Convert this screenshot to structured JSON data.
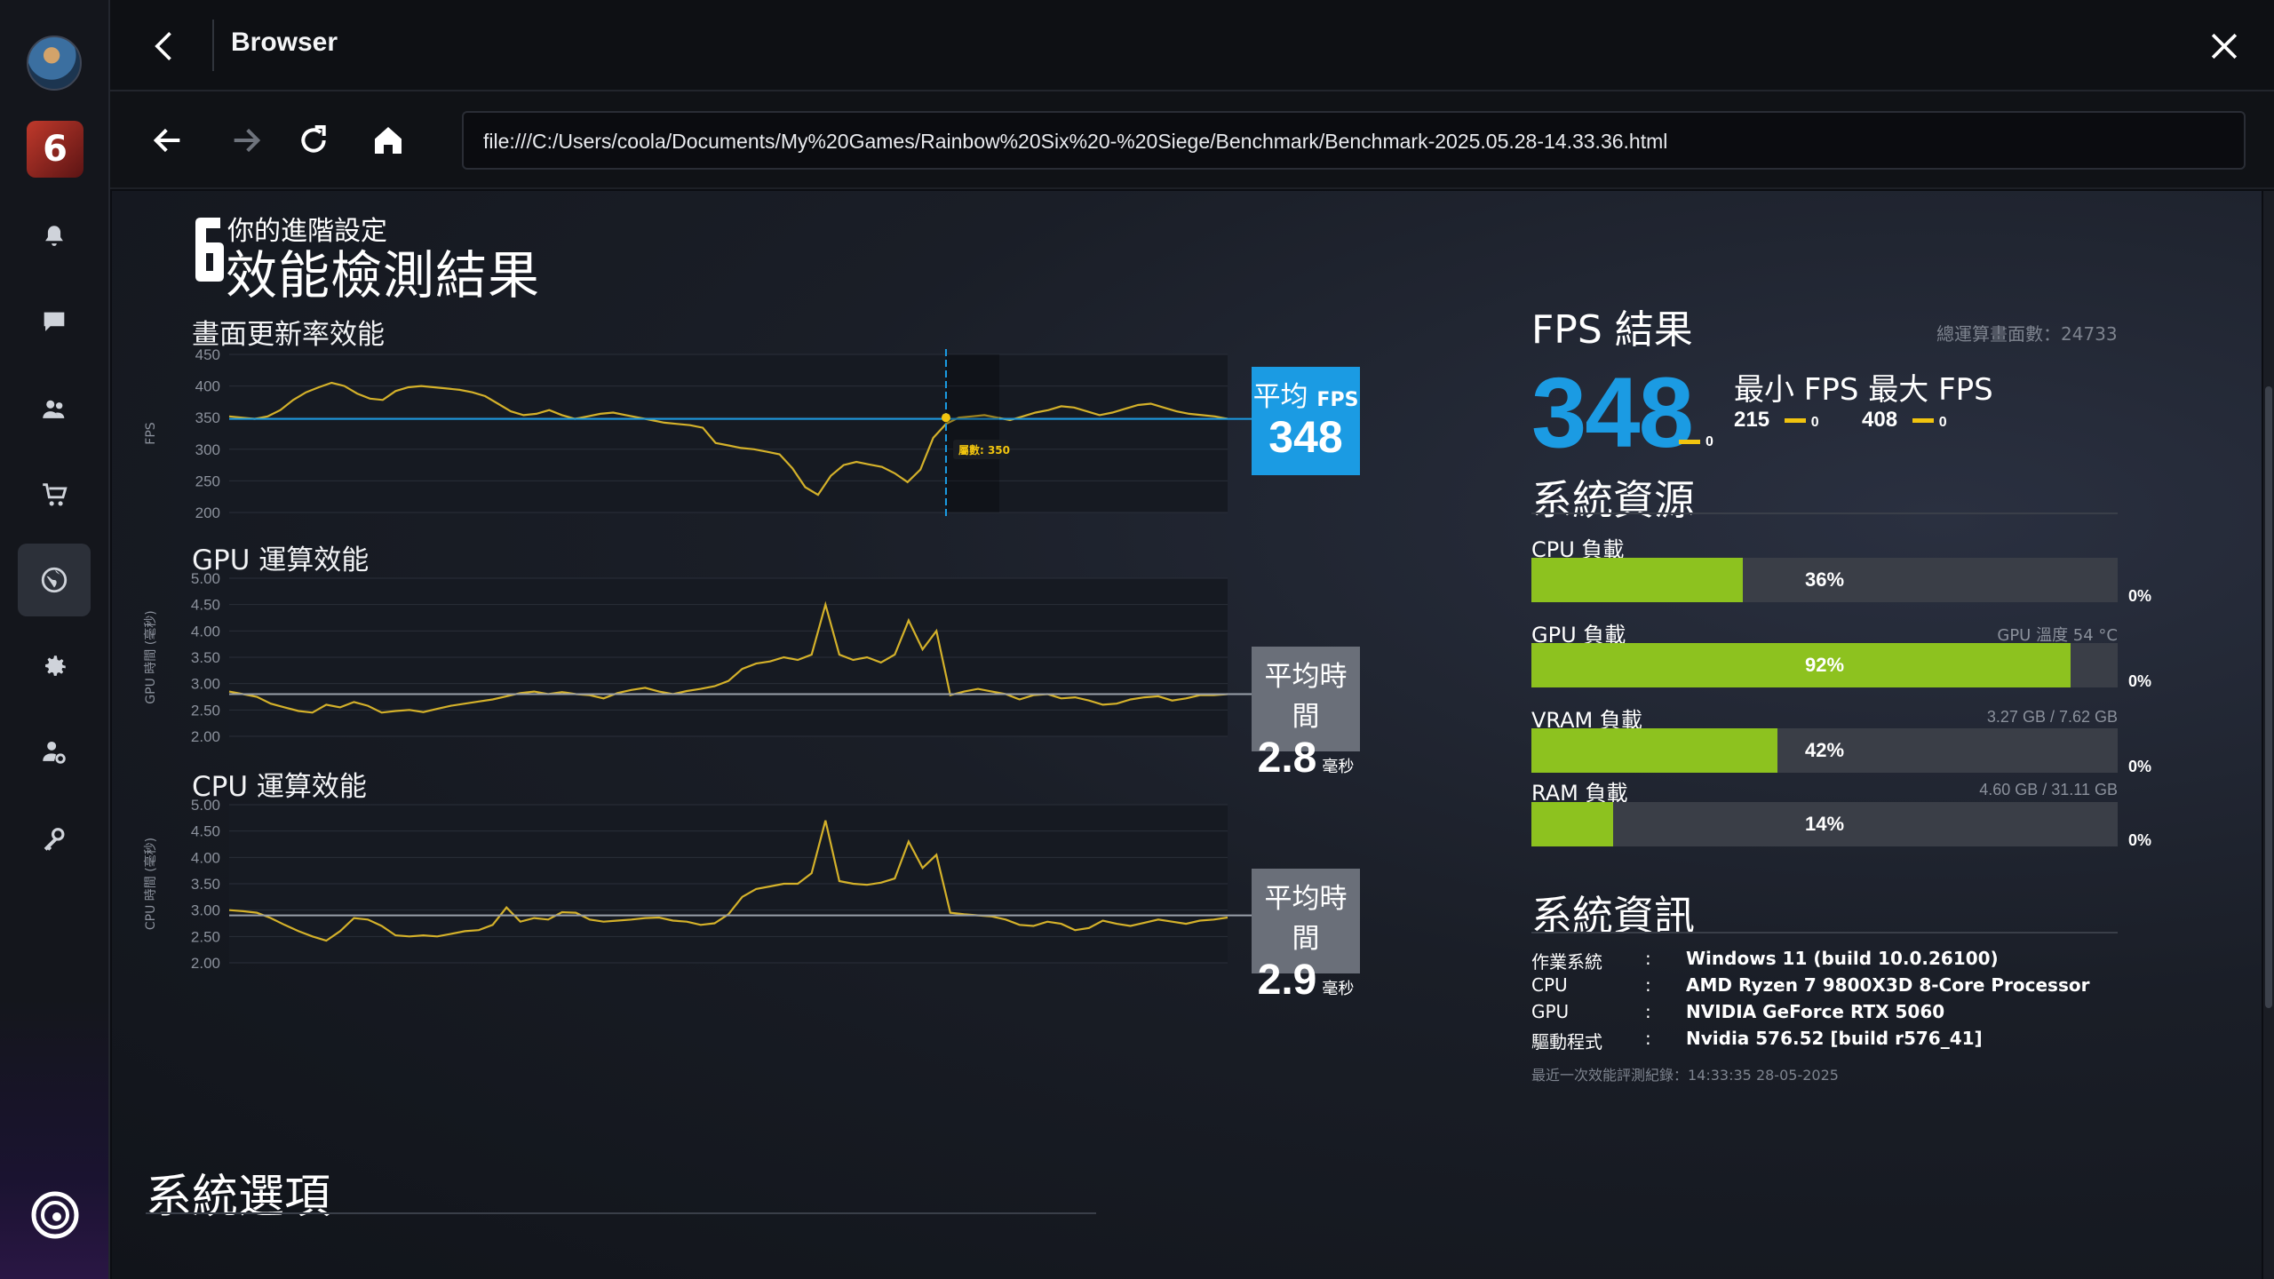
{
  "window": {
    "title": "Browser"
  },
  "nav": {
    "url": "file:///C:/Users/coola/Documents/My%20Games/Rainbow%20Six%20-%20Siege/Benchmark/Benchmark-2025.05.28-14.33.36.html"
  },
  "rail": {
    "items": [
      "notifications",
      "chat",
      "friends",
      "store",
      "browser",
      "settings",
      "account",
      "keys"
    ],
    "active": "browser"
  },
  "page": {
    "subtitle": "你的進階設定",
    "title": "效能檢測結果",
    "logo_text": "6"
  },
  "fps_chart": {
    "heading": "畫面更新率效能",
    "ylabel": "FPS",
    "ticks": [
      "450",
      "400",
      "350",
      "300",
      "250",
      "200"
    ],
    "tooltip": "屬數: 350",
    "avg_label_1": "平均",
    "avg_label_2": "FPS",
    "avg_value": "348"
  },
  "gpu_chart": {
    "heading": "GPU 運算效能",
    "ylabel": "GPU 時間 (毫秒)",
    "ticks": [
      "5.00",
      "4.50",
      "4.00",
      "3.50",
      "3.00",
      "2.50",
      "2.00"
    ],
    "avg_label": "平均時間",
    "avg_value": "2.8",
    "avg_unit": "毫秒"
  },
  "cpu_chart": {
    "heading": "CPU 運算效能",
    "ylabel": "CPU 時間 (毫秒)",
    "ticks": [
      "5.00",
      "4.50",
      "4.00",
      "3.50",
      "3.00",
      "2.50",
      "2.00"
    ],
    "avg_label": "平均時間",
    "avg_value": "2.9",
    "avg_unit": "毫秒"
  },
  "chart_data": [
    {
      "type": "line",
      "title": "畫面更新率效能",
      "ylabel": "FPS",
      "ylim": [
        200,
        450
      ],
      "reference_line": 348,
      "y": [
        352,
        350,
        348,
        352,
        362,
        378,
        390,
        398,
        405,
        400,
        388,
        380,
        378,
        392,
        398,
        400,
        398,
        396,
        394,
        390,
        384,
        372,
        360,
        354,
        356,
        362,
        354,
        348,
        352,
        356,
        358,
        354,
        350,
        346,
        342,
        340,
        338,
        334,
        310,
        306,
        302,
        300,
        296,
        292,
        270,
        240,
        228,
        258,
        275,
        280,
        276,
        272,
        262,
        248,
        268,
        318,
        340,
        350,
        352,
        354,
        350,
        346,
        352,
        358,
        362,
        368,
        366,
        360,
        354,
        358,
        364,
        370,
        372,
        366,
        360,
        356,
        354,
        352,
        348
      ],
      "highlight": {
        "value": 350,
        "label": "屬數: 350"
      },
      "grid": true
    },
    {
      "type": "line",
      "title": "GPU 運算效能",
      "ylabel": "GPU 時間 (毫秒)",
      "ylim": [
        2.0,
        5.0
      ],
      "reference_line": 2.8,
      "y": [
        2.85,
        2.8,
        2.75,
        2.62,
        2.55,
        2.48,
        2.45,
        2.6,
        2.55,
        2.65,
        2.58,
        2.45,
        2.48,
        2.5,
        2.46,
        2.52,
        2.58,
        2.62,
        2.66,
        2.7,
        2.76,
        2.82,
        2.85,
        2.8,
        2.84,
        2.8,
        2.78,
        2.72,
        2.82,
        2.88,
        2.92,
        2.85,
        2.8,
        2.86,
        2.9,
        2.95,
        3.05,
        3.28,
        3.38,
        3.42,
        3.5,
        3.45,
        3.55,
        4.5,
        3.55,
        3.45,
        3.5,
        3.4,
        3.55,
        4.2,
        3.65,
        4.0,
        2.78,
        2.85,
        2.9,
        2.85,
        2.8,
        2.7,
        2.78,
        2.8,
        2.72,
        2.74,
        2.68,
        2.6,
        2.62,
        2.7,
        2.74,
        2.76,
        2.68,
        2.72,
        2.78,
        2.78,
        2.8
      ],
      "grid": true
    },
    {
      "type": "line",
      "title": "CPU 運算效能",
      "ylabel": "CPU 時間 (毫秒)",
      "ylim": [
        2.0,
        5.0
      ],
      "reference_line": 2.9,
      "y": [
        3.0,
        2.98,
        2.95,
        2.85,
        2.72,
        2.6,
        2.5,
        2.42,
        2.6,
        2.85,
        2.82,
        2.7,
        2.52,
        2.5,
        2.52,
        2.5,
        2.55,
        2.6,
        2.62,
        2.72,
        3.05,
        2.78,
        2.85,
        2.82,
        2.96,
        2.95,
        2.82,
        2.78,
        2.8,
        2.82,
        2.85,
        2.86,
        2.8,
        2.78,
        2.72,
        2.75,
        2.92,
        3.25,
        3.4,
        3.45,
        3.5,
        3.5,
        3.7,
        4.7,
        3.55,
        3.5,
        3.48,
        3.52,
        3.6,
        4.3,
        3.8,
        4.05,
        2.95,
        2.92,
        2.9,
        2.88,
        2.82,
        2.72,
        2.7,
        2.78,
        2.74,
        2.62,
        2.66,
        2.8,
        2.74,
        2.7,
        2.76,
        2.82,
        2.78,
        2.74,
        2.8,
        2.82,
        2.86
      ],
      "grid": true
    }
  ],
  "fps_result": {
    "heading": "FPS 結果",
    "frames": "總運算畫面數：24733",
    "avg": "348",
    "avg_zero": "0",
    "min_max_label": "最小 FPS 最大 FPS",
    "min": "215",
    "min_zero": "0",
    "max": "408",
    "max_zero": "0"
  },
  "resources": {
    "heading": "系統資源",
    "items": [
      {
        "label": "CPU 負載",
        "right": "",
        "percent": 36,
        "text": "36%",
        "zero": "0%"
      },
      {
        "label": "GPU 負載",
        "right": "GPU 溫度 54 °C",
        "percent": 92,
        "text": "92%",
        "zero": "0%"
      },
      {
        "label": "VRAM 負載",
        "right": "3.27 GB / 7.62 GB",
        "percent": 42,
        "text": "42%",
        "zero": "0%"
      },
      {
        "label": "RAM 負載",
        "right": "4.60 GB / 31.11 GB",
        "percent": 14,
        "text": "14%",
        "zero": "0%"
      }
    ],
    "bar_color": "#8dc21f"
  },
  "sysinfo": {
    "heading": "系統資訊",
    "rows": [
      {
        "key": "作業系統",
        "colon": ":",
        "value": "Windows 11 (build 10.0.26100)"
      },
      {
        "key": "CPU",
        "colon": ":",
        "value": "AMD Ryzen 7 9800X3D 8-Core Processor"
      },
      {
        "key": "GPU",
        "colon": ":",
        "value": "NVIDIA GeForce RTX 5060"
      },
      {
        "key": "驅動程式",
        "colon": ":",
        "value": "Nvidia 576.52 [build r576_41]"
      }
    ],
    "last_run": "最近一次效能評測紀錄：14:33:35 28-05-2025"
  },
  "options": {
    "heading": "系統選項"
  },
  "colors": {
    "accent": "#1b9be3",
    "line": "#d4b12a",
    "bar": "#8dc21f"
  }
}
